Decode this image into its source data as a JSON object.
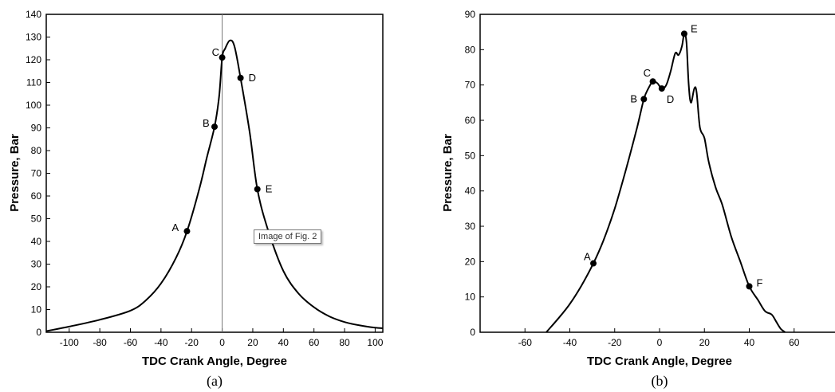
{
  "chart_data": [
    {
      "type": "line",
      "caption": "(a)",
      "xlabel": "TDC Crank Angle, Degree",
      "ylabel": "Pressure, Bar",
      "xlim": [
        -115,
        105
      ],
      "ylim": [
        0,
        140
      ],
      "xticks": [
        -100,
        -80,
        -60,
        -40,
        -20,
        0,
        20,
        40,
        60,
        80,
        100
      ],
      "yticks": [
        0,
        10,
        20,
        30,
        40,
        50,
        60,
        70,
        80,
        90,
        100,
        110,
        120,
        130,
        140
      ],
      "vline_x": 0,
      "curve": [
        [
          -115,
          0.5
        ],
        [
          -100,
          2.5
        ],
        [
          -80,
          5.5
        ],
        [
          -60,
          9.5
        ],
        [
          -50,
          14
        ],
        [
          -40,
          21.5
        ],
        [
          -30,
          33
        ],
        [
          -23,
          44.5
        ],
        [
          -15,
          63
        ],
        [
          -10,
          77
        ],
        [
          -5,
          90.5
        ],
        [
          -2,
          104
        ],
        [
          0,
          121
        ],
        [
          2,
          125
        ],
        [
          5,
          128.5
        ],
        [
          8,
          126
        ],
        [
          12,
          112
        ],
        [
          18,
          88
        ],
        [
          23,
          63
        ],
        [
          30,
          45
        ],
        [
          40,
          27
        ],
        [
          50,
          17
        ],
        [
          60,
          11
        ],
        [
          70,
          7
        ],
        [
          80,
          4.5
        ],
        [
          90,
          3
        ],
        [
          100,
          2
        ],
        [
          105,
          1.8
        ]
      ],
      "points": [
        {
          "label": "A",
          "x": -23,
          "y": 44.5
        },
        {
          "label": "B",
          "x": -5,
          "y": 90.5
        },
        {
          "label": "C",
          "x": 0,
          "y": 121
        },
        {
          "label": "D",
          "x": 12,
          "y": 112
        },
        {
          "label": "E",
          "x": 23,
          "y": 63
        }
      ]
    },
    {
      "type": "line",
      "caption": "(b)",
      "xlabel": "TDC Crank Angle, Degree",
      "ylabel": "Pressure, Bar",
      "xlim": [
        -80,
        80
      ],
      "ylim": [
        0,
        90
      ],
      "xticks": [
        -60,
        -40,
        -20,
        0,
        20,
        40,
        60
      ],
      "yticks": [
        0,
        10,
        20,
        30,
        40,
        50,
        60,
        70,
        80,
        90
      ],
      "curve": [
        [
          -50.5,
          0
        ],
        [
          -45,
          4
        ],
        [
          -40,
          8
        ],
        [
          -35,
          13
        ],
        [
          -29.5,
          19.5
        ],
        [
          -25,
          26
        ],
        [
          -20,
          35
        ],
        [
          -15,
          46
        ],
        [
          -10,
          58
        ],
        [
          -7,
          66
        ],
        [
          -5,
          69
        ],
        [
          -3,
          71
        ],
        [
          -1,
          70.5
        ],
        [
          1,
          69
        ],
        [
          3,
          70
        ],
        [
          5,
          74
        ],
        [
          7,
          79
        ],
        [
          8.5,
          78.5
        ],
        [
          10,
          81
        ],
        [
          11,
          84.5
        ],
        [
          12,
          82
        ],
        [
          13,
          70
        ],
        [
          14,
          65
        ],
        [
          15.5,
          69
        ],
        [
          16.5,
          68
        ],
        [
          18,
          58
        ],
        [
          20,
          55
        ],
        [
          22,
          48
        ],
        [
          25,
          41
        ],
        [
          28,
          36
        ],
        [
          32,
          27
        ],
        [
          36,
          20
        ],
        [
          40,
          13
        ],
        [
          44,
          9
        ],
        [
          47,
          6
        ],
        [
          50,
          5
        ],
        [
          52,
          3
        ],
        [
          54,
          1
        ],
        [
          56,
          0
        ]
      ],
      "points": [
        {
          "label": "A",
          "x": -29.5,
          "y": 19.5
        },
        {
          "label": "B",
          "x": -7,
          "y": 66
        },
        {
          "label": "C",
          "x": -3,
          "y": 71
        },
        {
          "label": "D",
          "x": 1,
          "y": 69
        },
        {
          "label": "E",
          "x": 11,
          "y": 84.5
        },
        {
          "label": "F",
          "x": 40,
          "y": 13
        }
      ]
    }
  ],
  "tooltip": "Image of Fig. 2"
}
